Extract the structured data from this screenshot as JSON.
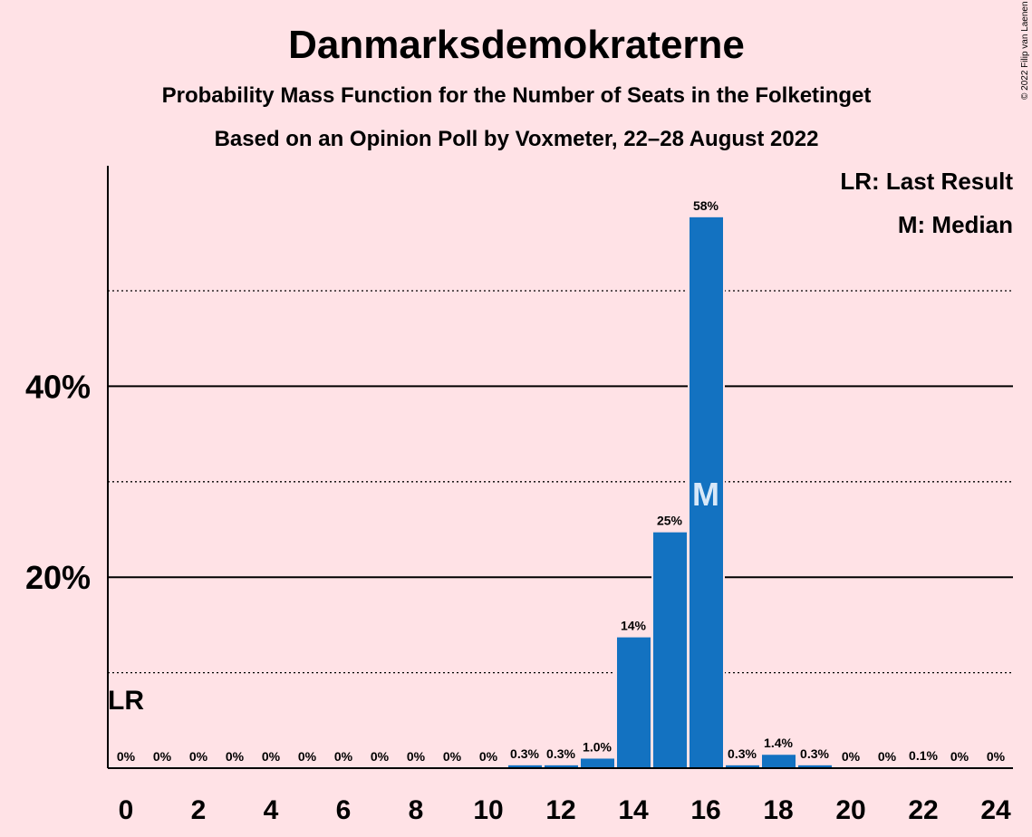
{
  "chart_data": {
    "type": "bar",
    "title": "Danmarksdemokraterne",
    "subtitle_1": "Probability Mass Function for the Number of Seats in the Folketinget",
    "subtitle_2": "Based on an Opinion Poll by Voxmeter, 22–28 August 2022",
    "copyright": "© 2022 Filip van Laenen",
    "legend": [
      "LR: Last Result",
      "M: Median"
    ],
    "legend_position": "top-right",
    "categories": [
      0,
      1,
      2,
      3,
      4,
      5,
      6,
      7,
      8,
      9,
      10,
      11,
      12,
      13,
      14,
      15,
      16,
      17,
      18,
      19,
      20,
      21,
      22,
      23,
      24
    ],
    "values": [
      0,
      0,
      0,
      0,
      0,
      0,
      0,
      0,
      0,
      0,
      0,
      0.3,
      0.3,
      1.0,
      13.7,
      24.7,
      57.7,
      0.3,
      1.4,
      0.3,
      0,
      0,
      0.1,
      0,
      0
    ],
    "value_labels": [
      "0%",
      "0%",
      "0%",
      "0%",
      "0%",
      "0%",
      "0%",
      "0%",
      "0%",
      "0%",
      "0%",
      "0.3%",
      "0.3%",
      "1.0%",
      "14%",
      "25%",
      "58%",
      "0.3%",
      "1.4%",
      "0.3%",
      "0%",
      "0%",
      "0.1%",
      "0%",
      "0%"
    ],
    "x_tick_labels": [
      "0",
      "2",
      "4",
      "6",
      "8",
      "10",
      "12",
      "14",
      "16",
      "18",
      "20",
      "22",
      "24"
    ],
    "x_tick_values": [
      0,
      2,
      4,
      6,
      8,
      10,
      12,
      14,
      16,
      18,
      20,
      22,
      24
    ],
    "y_tick_labels": [
      "20%",
      "40%"
    ],
    "y_tick_values": [
      20,
      40
    ],
    "solid_gridlines": [
      20,
      40
    ],
    "dotted_gridlines": [
      10,
      30,
      50
    ],
    "ylim": [
      0,
      63
    ],
    "last_result": {
      "seat": 0,
      "label": "LR"
    },
    "median": {
      "seat": 16,
      "label": "M"
    },
    "bar_color": "#1372C1",
    "background_color": "#FFE2E6"
  }
}
